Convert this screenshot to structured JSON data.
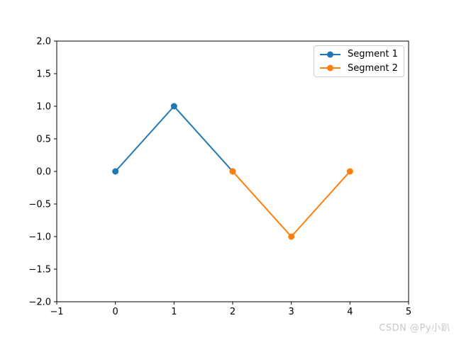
{
  "watermark": {
    "text": "CSDN @Py小趴",
    "color": "#c8c8c8"
  },
  "colors": {
    "axis": "#000000",
    "tick_label": "#000000",
    "legend_border": "#cccccc",
    "segment1": "#1f77b4",
    "segment2": "#ff7f0e"
  },
  "legend": {
    "position": "upper right",
    "entries": [
      {
        "label": "Segment 1",
        "color": "#1f77b4"
      },
      {
        "label": "Segment 2",
        "color": "#ff7f0e"
      }
    ]
  },
  "chart_data": {
    "type": "line",
    "title": "",
    "xlabel": "",
    "ylabel": "",
    "grid": false,
    "legend_position": "upper right",
    "xlim": [
      -1,
      5
    ],
    "ylim": [
      -2,
      2
    ],
    "xticks": [
      -1,
      0,
      1,
      2,
      3,
      4,
      5
    ],
    "yticks": [
      -2.0,
      -1.5,
      -1.0,
      -0.5,
      0.0,
      0.5,
      1.0,
      1.5,
      2.0
    ],
    "xtick_labels": [
      "−1",
      "0",
      "1",
      "2",
      "3",
      "4",
      "5"
    ],
    "ytick_labels": [
      "−2.0",
      "−1.5",
      "−1.0",
      "−0.5",
      "0.0",
      "0.5",
      "1.0",
      "1.5",
      "2.0"
    ],
    "series": [
      {
        "name": "Segment 1",
        "color": "#1f77b4",
        "marker": "o",
        "x": [
          0,
          1,
          2
        ],
        "y": [
          0,
          1,
          0
        ]
      },
      {
        "name": "Segment 2",
        "color": "#ff7f0e",
        "marker": "o",
        "x": [
          2,
          3,
          4
        ],
        "y": [
          0,
          -1,
          0
        ]
      }
    ]
  }
}
